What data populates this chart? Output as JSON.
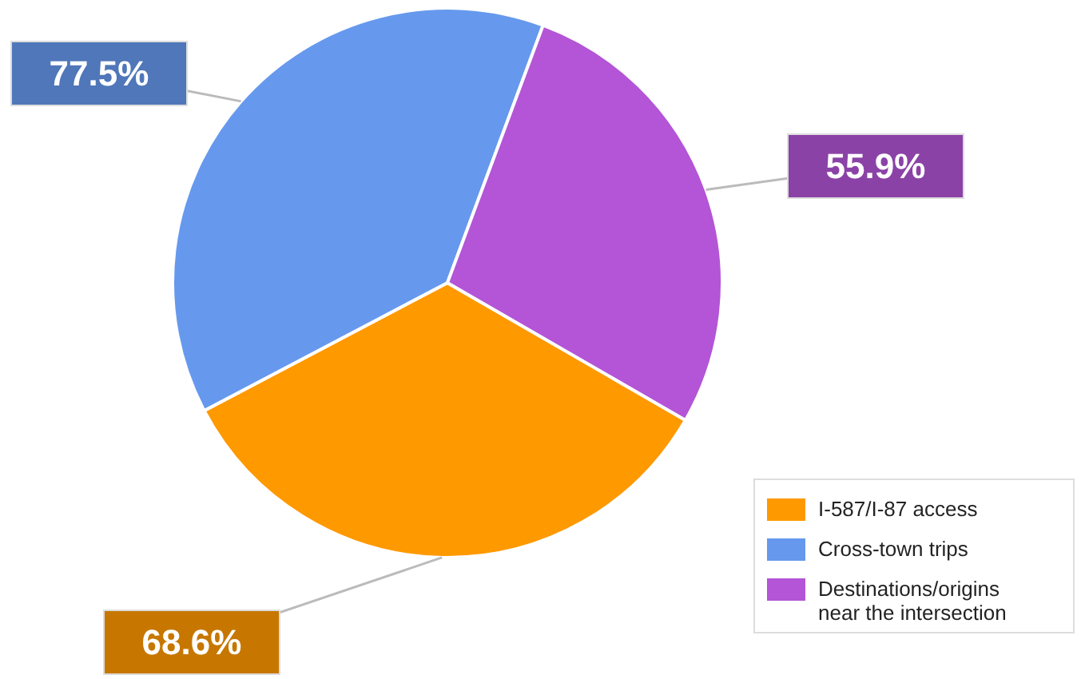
{
  "chart_data": {
    "type": "pie",
    "categories": [
      "I-587/I-87 access",
      "Cross-town trips",
      "Destinations/origins near the intersection"
    ],
    "values": [
      68.6,
      77.5,
      55.9
    ],
    "colors": [
      "#ff9900",
      "#6699ee",
      "#b355d6"
    ],
    "value_labels": [
      "68.6%",
      "77.5%",
      "55.9%"
    ],
    "legend": "bottom right"
  }
}
